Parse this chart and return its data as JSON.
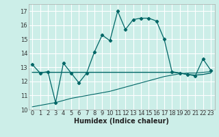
{
  "xlabel": "Humidex (Indice chaleur)",
  "bg_color": "#cceee8",
  "grid_color": "#ffffff",
  "line_color": "#006666",
  "xlim": [
    -0.5,
    23.5
  ],
  "ylim": [
    10,
    17.5
  ],
  "yticks": [
    10,
    11,
    12,
    13,
    14,
    15,
    16,
    17
  ],
  "xticks": [
    0,
    1,
    2,
    3,
    4,
    5,
    6,
    7,
    8,
    9,
    10,
    11,
    12,
    13,
    14,
    15,
    16,
    17,
    18,
    19,
    20,
    21,
    22,
    23
  ],
  "series1_x": [
    0,
    1,
    2,
    3,
    4,
    5,
    6,
    7,
    8,
    9,
    10,
    11,
    12,
    13,
    14,
    15,
    16,
    17,
    18,
    19,
    20,
    21,
    22,
    23
  ],
  "series1_y": [
    13.2,
    12.6,
    12.7,
    10.5,
    13.3,
    12.6,
    11.9,
    12.6,
    14.1,
    15.3,
    14.9,
    17.0,
    15.7,
    16.4,
    16.5,
    16.5,
    16.3,
    15.0,
    12.7,
    12.6,
    12.5,
    12.4,
    13.6,
    12.8
  ],
  "series2_x": [
    0,
    1,
    2,
    3,
    4,
    5,
    6,
    7,
    8,
    9,
    10,
    11,
    12,
    13,
    14,
    15,
    16,
    17,
    18,
    19,
    20,
    21,
    22,
    23
  ],
  "series2_y": [
    12.65,
    12.65,
    12.65,
    12.65,
    12.65,
    12.65,
    12.65,
    12.65,
    12.65,
    12.65,
    12.65,
    12.65,
    12.65,
    12.65,
    12.65,
    12.65,
    12.65,
    12.65,
    12.65,
    12.6,
    12.5,
    12.45,
    12.5,
    12.6
  ],
  "series3_x": [
    0,
    3,
    5,
    8,
    10,
    12,
    14,
    16,
    17,
    18,
    19,
    20,
    21,
    22,
    23
  ],
  "series3_y": [
    10.2,
    10.5,
    10.8,
    11.1,
    11.3,
    11.6,
    11.9,
    12.2,
    12.35,
    12.45,
    12.55,
    12.6,
    12.6,
    12.65,
    12.7
  ],
  "tick_fontsize": 6,
  "xlabel_fontsize": 7
}
